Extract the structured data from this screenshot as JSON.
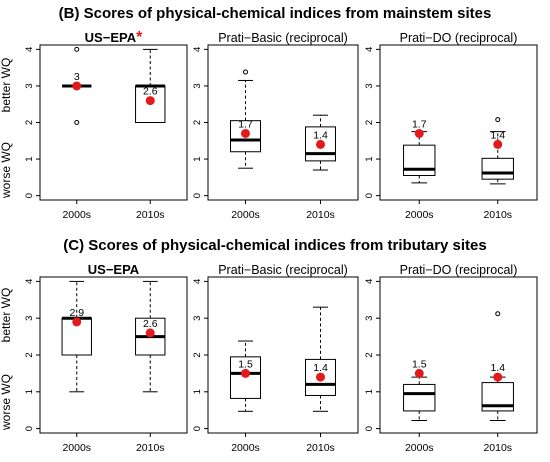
{
  "sections": [
    {
      "title": "(B) Scores of physical-chemical indices from mainstem sites",
      "ylabel_top": "better WQ",
      "ylabel_bottom": "worse WQ",
      "panels": [
        {
          "title": "US−EPA",
          "title_suffix": "*",
          "categories": [
            "2000s",
            "2010s"
          ],
          "boxes": [
            {
              "q1": 3.0,
              "median": 3.0,
              "q3": 3.0,
              "whisker_low": 3.0,
              "whisker_high": 3.0,
              "outliers": [
                4.0,
                2.0
              ],
              "mean": 3.0,
              "mean_label": "3"
            },
            {
              "q1": 2.0,
              "median": 3.0,
              "q3": 3.0,
              "whisker_low": 2.0,
              "whisker_high": 4.0,
              "outliers": [],
              "mean": 2.6,
              "mean_label": "2.6"
            }
          ]
        },
        {
          "title": "Prati−Basic (reciprocal)",
          "title_suffix": "",
          "categories": [
            "2000s",
            "2010s"
          ],
          "boxes": [
            {
              "q1": 1.2,
              "median": 1.52,
              "q3": 2.05,
              "whisker_low": 0.75,
              "whisker_high": 3.15,
              "outliers": [
                3.38
              ],
              "mean": 1.7,
              "mean_label": "1.7"
            },
            {
              "q1": 0.95,
              "median": 1.15,
              "q3": 1.88,
              "whisker_low": 0.7,
              "whisker_high": 2.2,
              "outliers": [],
              "mean": 1.4,
              "mean_label": "1.4"
            }
          ]
        },
        {
          "title": "Prati−DO (reciprocal)",
          "title_suffix": "",
          "categories": [
            "2000s",
            "2010s"
          ],
          "boxes": [
            {
              "q1": 0.55,
              "median": 0.72,
              "q3": 1.38,
              "whisker_low": 0.35,
              "whisker_high": 1.75,
              "outliers": [],
              "mean": 1.7,
              "mean_label": "1.7"
            },
            {
              "q1": 0.45,
              "median": 0.62,
              "q3": 1.02,
              "whisker_low": 0.32,
              "whisker_high": 1.75,
              "outliers": [
                2.08
              ],
              "mean": 1.4,
              "mean_label": "1.4"
            }
          ]
        }
      ]
    },
    {
      "title": "(C) Scores of physical-chemical indices from tributary sites",
      "ylabel_top": "better WQ",
      "ylabel_bottom": "worse WQ",
      "panels": [
        {
          "title": "US−EPA",
          "title_suffix": "",
          "categories": [
            "2000s",
            "2010s"
          ],
          "boxes": [
            {
              "q1": 2.0,
              "median": 3.0,
              "q3": 3.0,
              "whisker_low": 1.0,
              "whisker_high": 4.0,
              "outliers": [],
              "mean": 2.9,
              "mean_label": "2.9"
            },
            {
              "q1": 2.0,
              "median": 2.5,
              "q3": 3.0,
              "whisker_low": 1.0,
              "whisker_high": 4.0,
              "outliers": [],
              "mean": 2.6,
              "mean_label": "2.6"
            }
          ]
        },
        {
          "title": "Prati−Basic (reciprocal)",
          "title_suffix": "",
          "categories": [
            "2000s",
            "2010s"
          ],
          "boxes": [
            {
              "q1": 0.82,
              "median": 1.5,
              "q3": 1.95,
              "whisker_low": 0.47,
              "whisker_high": 2.38,
              "outliers": [],
              "mean": 1.5,
              "mean_label": "1.5"
            },
            {
              "q1": 0.9,
              "median": 1.2,
              "q3": 1.88,
              "whisker_low": 0.47,
              "whisker_high": 3.3,
              "outliers": [],
              "mean": 1.4,
              "mean_label": "1.4"
            }
          ]
        },
        {
          "title": "Prati−DO (reciprocal)",
          "title_suffix": "",
          "categories": [
            "2000s",
            "2010s"
          ],
          "boxes": [
            {
              "q1": 0.48,
              "median": 0.95,
              "q3": 1.2,
              "whisker_low": 0.22,
              "whisker_high": 1.4,
              "outliers": [],
              "mean": 1.5,
              "mean_label": "1.5"
            },
            {
              "q1": 0.48,
              "median": 0.62,
              "q3": 1.25,
              "whisker_low": 0.22,
              "whisker_high": 1.4,
              "outliers": [
                3.12
              ],
              "mean": 1.4,
              "mean_label": "1.4"
            }
          ]
        }
      ]
    }
  ],
  "chart_data": [
    {
      "type": "box",
      "title": "US−EPA* (mainstem)",
      "categories": [
        "2000s",
        "2010s"
      ],
      "ylim": [
        0,
        4
      ],
      "series": [
        {
          "values_median": [
            3.0,
            3.0
          ],
          "values_mean": [
            3,
            2.6
          ]
        }
      ]
    },
    {
      "type": "box",
      "title": "Prati−Basic (reciprocal) (mainstem)",
      "categories": [
        "2000s",
        "2010s"
      ],
      "ylim": [
        0,
        4
      ],
      "series": [
        {
          "values_median": [
            1.52,
            1.15
          ],
          "values_mean": [
            1.7,
            1.4
          ]
        }
      ]
    },
    {
      "type": "box",
      "title": "Prati−DO (reciprocal) (mainstem)",
      "categories": [
        "2000s",
        "2010s"
      ],
      "ylim": [
        0,
        4
      ],
      "series": [
        {
          "values_median": [
            0.72,
            0.62
          ],
          "values_mean": [
            1.7,
            1.4
          ]
        }
      ]
    },
    {
      "type": "box",
      "title": "US−EPA (tributary)",
      "categories": [
        "2000s",
        "2010s"
      ],
      "ylim": [
        0,
        4
      ],
      "series": [
        {
          "values_median": [
            3.0,
            2.5
          ],
          "values_mean": [
            2.9,
            2.6
          ]
        }
      ]
    },
    {
      "type": "box",
      "title": "Prati−Basic (reciprocal) (tributary)",
      "categories": [
        "2000s",
        "2010s"
      ],
      "ylim": [
        0,
        4
      ],
      "series": [
        {
          "values_median": [
            1.5,
            1.2
          ],
          "values_mean": [
            1.5,
            1.4
          ]
        }
      ]
    },
    {
      "type": "box",
      "title": "Prati−DO (reciprocal) (tributary)",
      "categories": [
        "2000s",
        "2010s"
      ],
      "ylim": [
        0,
        4
      ],
      "series": [
        {
          "values_median": [
            0.95,
            0.62
          ],
          "values_mean": [
            1.5,
            1.4
          ]
        }
      ]
    }
  ],
  "y_ticks": [
    "0",
    "1",
    "2",
    "3",
    "4"
  ],
  "colors": {
    "mean_dot": "#e31a1c",
    "asterisk": "#e31a1c",
    "box_line": "#000000"
  }
}
